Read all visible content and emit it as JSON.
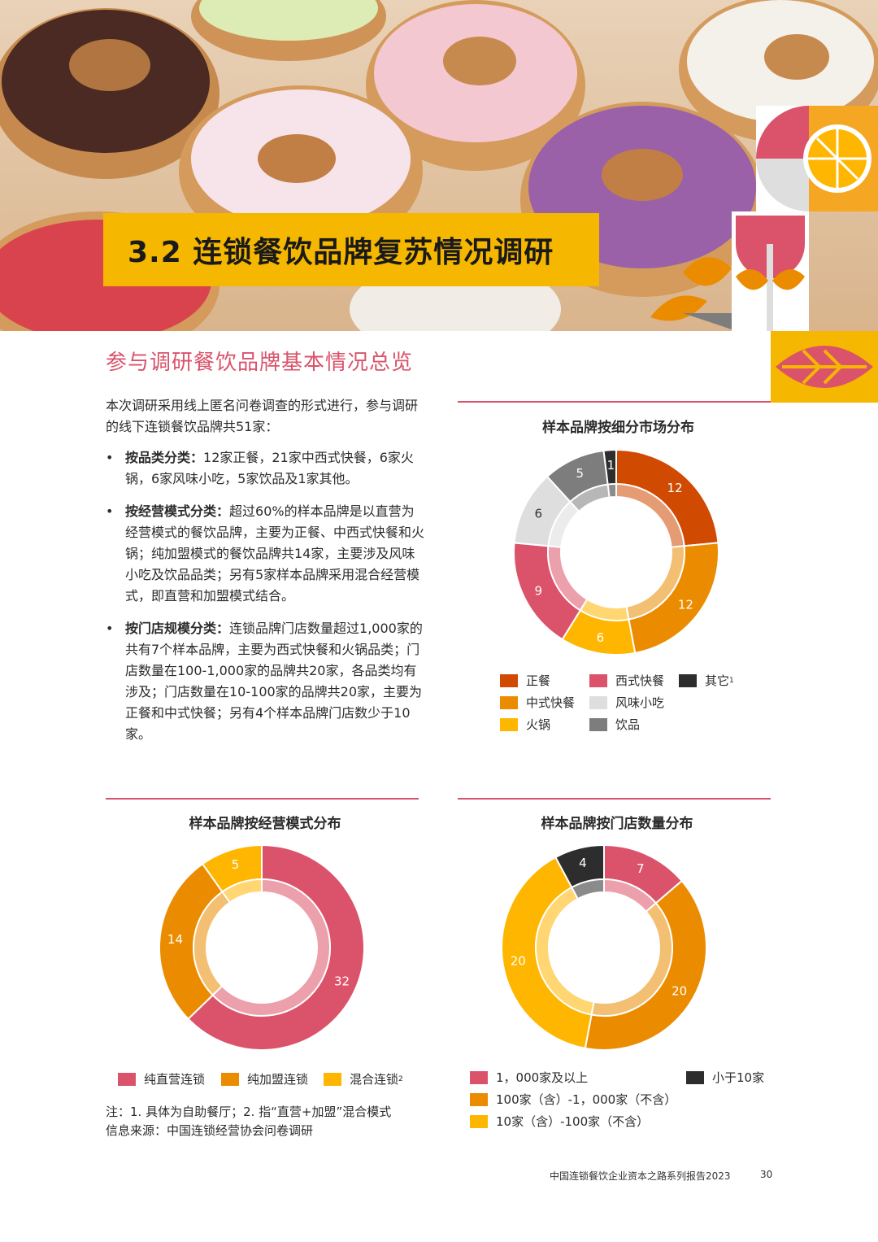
{
  "header": {
    "section_title": "3.2 连锁餐饮品牌复苏情况调研"
  },
  "subtitle": "参与调研餐饮品牌基本情况总览",
  "intro": {
    "lead": "本次调研采用线上匿名问卷调查的形式进行，参与调研的线下连锁餐饮品牌共51家：",
    "bullets": [
      {
        "label": "按品类分类：",
        "text": "12家正餐，21家中西式快餐，6家火锅，6家风味小吃，5家饮品及1家其他。"
      },
      {
        "label": "按经营模式分类：",
        "text": "超过60%的样本品牌是以直营为经营模式的餐饮品牌，主要为正餐、中西式快餐和火锅；纯加盟模式的餐饮品牌共14家，主要涉及风味小吃及饮品品类；另有5家样本品牌采用混合经营模式，即直营和加盟模式结合。"
      },
      {
        "label": "按门店规模分类：",
        "text": "连锁品牌门店数量超过1,000家的共有7个样本品牌，主要为西式快餐和火锅品类；门店数量在100-1,000家的品牌共20家，各品类均有涉及；门店数量在10-100家的品牌共20家，主要为正餐和中式快餐；另有4个样本品牌门店数少于10家。"
      }
    ]
  },
  "chart_data": [
    {
      "type": "pie",
      "title": "样本品牌按细分市场分布",
      "categories": [
        "正餐",
        "中式快餐",
        "火锅",
        "西式快餐",
        "风味小吃",
        "饮品",
        "其它"
      ],
      "values": [
        12,
        12,
        6,
        9,
        6,
        5,
        1
      ],
      "legend_labels": [
        "正餐",
        "中式快餐",
        "火锅",
        "西式快餐",
        "风味小吃",
        "饮品",
        "其它"
      ],
      "legend_sup": [
        "",
        "",
        "",
        "",
        "",
        "",
        "1"
      ],
      "colors": [
        "#d04a02",
        "#eb8c00",
        "#ffb600",
        "#db536a",
        "#dedede",
        "#7d7d7d",
        "#2d2d2d"
      ],
      "style": "donut"
    },
    {
      "type": "pie",
      "title": "样本品牌按经营模式分布",
      "categories": [
        "纯直营连锁",
        "纯加盟连锁",
        "混合连锁"
      ],
      "values": [
        32,
        14,
        5
      ],
      "legend_labels": [
        "纯直营连锁",
        "纯加盟连锁",
        "混合连锁"
      ],
      "legend_sup": [
        "",
        "",
        "2"
      ],
      "colors": [
        "#db536a",
        "#eb8c00",
        "#ffb600"
      ],
      "style": "donut"
    },
    {
      "type": "pie",
      "title": "样本品牌按门店数量分布",
      "categories": [
        "1,000家及以上",
        "100家（含）-1,000家（不含）",
        "10家（含）-100家（不含）",
        "小于10家"
      ],
      "values": [
        7,
        20,
        20,
        4
      ],
      "legend_labels": [
        "1，000家及以上",
        "100家（含）-1，000家（不含）",
        "10家（含）-100家（不含）",
        "小于10家"
      ],
      "legend_sup": [
        "",
        "",
        "",
        ""
      ],
      "colors": [
        "#db536a",
        "#eb8c00",
        "#ffb600",
        "#2d2d2d"
      ],
      "style": "donut"
    }
  ],
  "notes": {
    "line1": "注：1. 具体为自助餐厅；2. 指“直营+加盟”混合模式",
    "line2": "信息来源：中国连锁经营协会问卷调研"
  },
  "footer": {
    "report": "中国连锁餐饮企业资本之路系列报告2023",
    "page": "30"
  }
}
